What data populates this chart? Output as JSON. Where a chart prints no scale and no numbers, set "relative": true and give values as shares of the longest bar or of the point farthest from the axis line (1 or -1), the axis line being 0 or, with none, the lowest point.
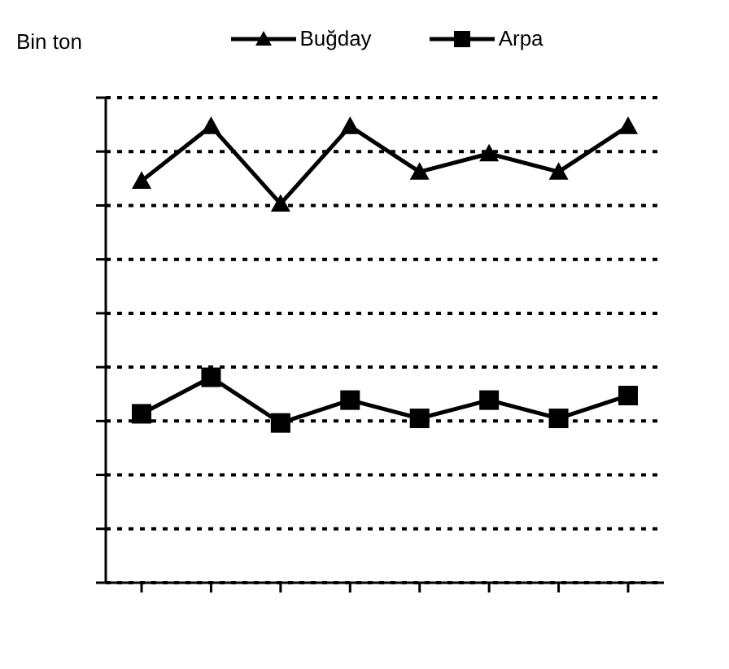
{
  "chart_data": {
    "type": "line",
    "relative": true,
    "ylabel": "Bin ton",
    "categories": [
      null,
      null,
      null,
      null,
      null,
      null,
      null,
      null
    ],
    "series": [
      {
        "name": "Buğday",
        "color": "#000000",
        "marker": "triangle",
        "values": [
          0.88,
          1,
          0.83,
          1,
          0.9,
          0.94,
          0.9,
          1
        ]
      },
      {
        "name": "Arpa",
        "color": "#000000",
        "marker": "square",
        "values": [
          0.37,
          0.45,
          0.35,
          0.4,
          0.36,
          0.4,
          0.36,
          0.41
        ]
      }
    ],
    "grid": "y",
    "legend": "top",
    "line_style": "solid"
  }
}
